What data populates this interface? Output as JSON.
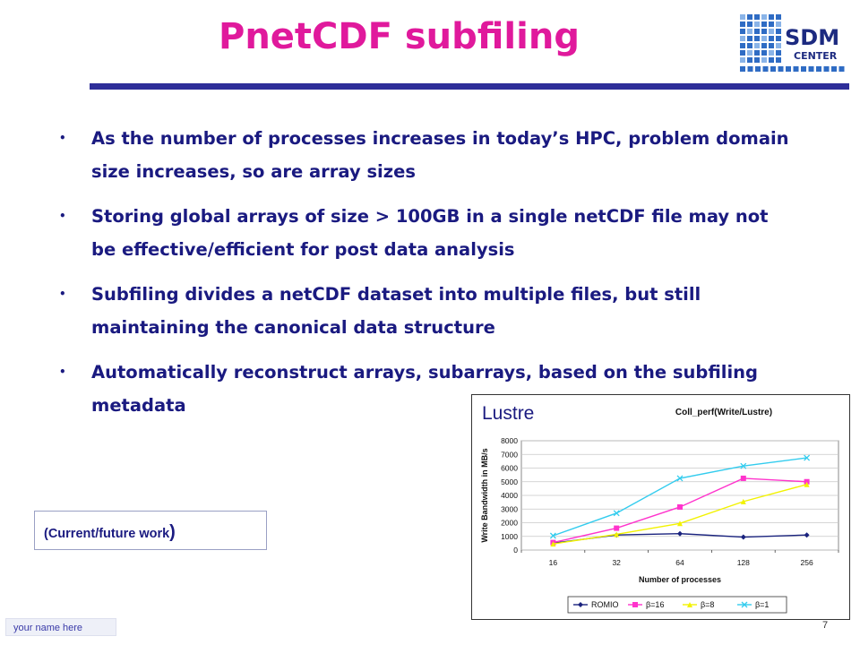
{
  "slide": {
    "title": "PnetCDF subfiling",
    "bullets": [
      "As the number of processes increases in today’s HPC, problem domain size increases, so are array sizes",
      "Storing global arrays of size > 100GB in a single netCDF file may not be effective/efficient for post data analysis",
      "Subfiling divides a netCDF dataset into multiple files, but still maintaining the canonical data structure",
      "Automatically reconstruct arrays, subarrays, based on the subfiling metadata"
    ],
    "future_work_label": "(Current/future work",
    "future_work_paren": ")",
    "lustre_label": "Lustre",
    "footer_name": "your name here",
    "page_number": "7"
  },
  "logo": {
    "text_top": "SDM",
    "text_bottom": "CENTER"
  },
  "colors": {
    "title": "#e0199c",
    "body_text": "#1a1a80",
    "rule": "#2e2e99"
  },
  "chart_data": {
    "type": "line",
    "title": "Coll_perf(Write/Lustre)",
    "xlabel": "Number of processes",
    "ylabel": "Write Bandwidth in MB/s",
    "categories": [
      "16",
      "32",
      "64",
      "128",
      "256"
    ],
    "ylim": [
      0,
      8000
    ],
    "yticks": [
      0,
      1000,
      2000,
      3000,
      4000,
      5000,
      6000,
      7000,
      8000
    ],
    "grid": true,
    "legend_position": "bottom",
    "series": [
      {
        "name": "ROMIO",
        "color": "#1a237e",
        "marker": "diamond",
        "values": [
          500,
          1100,
          1200,
          950,
          1100
        ]
      },
      {
        "name": "β=16",
        "color": "#ff33cc",
        "marker": "square",
        "values": [
          550,
          1600,
          3150,
          5250,
          5000
        ]
      },
      {
        "name": "β=8",
        "color": "#f2f200",
        "marker": "triangle",
        "values": [
          450,
          1150,
          1950,
          3550,
          4800
        ]
      },
      {
        "name": "β=1",
        "color": "#33ccee",
        "marker": "x",
        "values": [
          1050,
          2700,
          5250,
          6150,
          6750
        ]
      }
    ]
  }
}
